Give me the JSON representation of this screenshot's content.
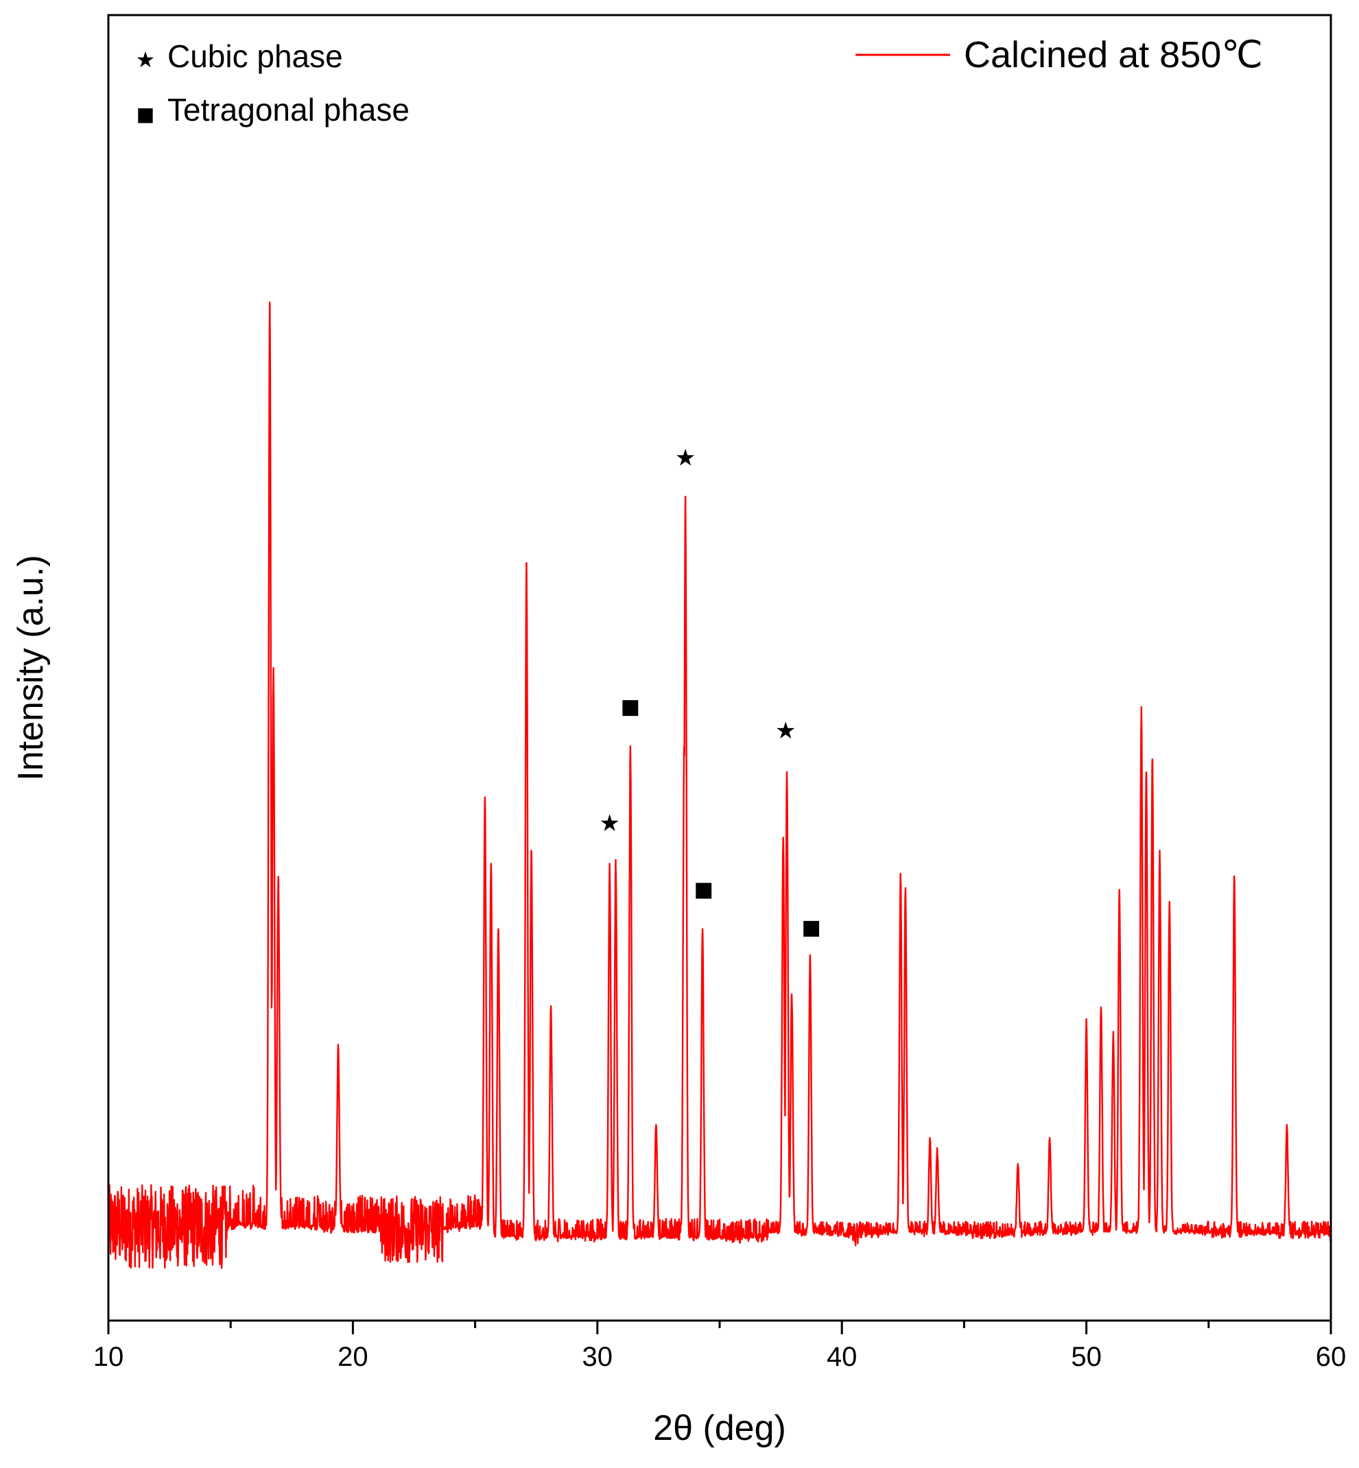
{
  "chart_data": {
    "type": "line",
    "xlabel": "2θ (deg)",
    "ylabel": "Intensity (a.u.)",
    "xlim": [
      10,
      60
    ],
    "ylim": [
      0,
      100
    ],
    "x_major_ticks": [
      10,
      20,
      30,
      40,
      50,
      60
    ],
    "x_tick_labels": [
      "10",
      "20",
      "30",
      "40",
      "50",
      "60"
    ],
    "x_minor_ticks": [
      15,
      25,
      35,
      45,
      55
    ],
    "y_tick_labels": "none",
    "grid": false,
    "legend": {
      "placement": "top-right"
    },
    "series": [
      {
        "name": "Calcined at 850℃",
        "color": "#ff0000",
        "baseline_segments": [
          {
            "x": [
              10,
              16
            ],
            "center": 7.2,
            "noise": 3.2
          },
          {
            "x": [
              16,
              25.5
            ],
            "center": 7.0,
            "noise": 2.6
          },
          {
            "x": [
              25.5,
              37
            ],
            "center": 6.2,
            "noise": 1.6
          },
          {
            "x": [
              37,
              60
            ],
            "center": 6.6,
            "noise": 1.0
          }
        ],
        "peaks": [
          {
            "x": 16.6,
            "y": 78
          },
          {
            "x": 16.75,
            "y": 50
          },
          {
            "x": 16.95,
            "y": 34
          },
          {
            "x": 19.4,
            "y": 21
          },
          {
            "x": 25.4,
            "y": 40
          },
          {
            "x": 25.65,
            "y": 35
          },
          {
            "x": 25.95,
            "y": 30
          },
          {
            "x": 27.1,
            "y": 58
          },
          {
            "x": 27.3,
            "y": 36
          },
          {
            "x": 28.1,
            "y": 24
          },
          {
            "x": 30.5,
            "y": 35
          },
          {
            "x": 30.75,
            "y": 35
          },
          {
            "x": 31.35,
            "y": 44
          },
          {
            "x": 32.4,
            "y": 15
          },
          {
            "x": 33.6,
            "y": 63
          },
          {
            "x": 33.55,
            "y": 44
          },
          {
            "x": 34.3,
            "y": 30
          },
          {
            "x": 37.6,
            "y": 37
          },
          {
            "x": 37.75,
            "y": 42
          },
          {
            "x": 37.95,
            "y": 25
          },
          {
            "x": 38.7,
            "y": 28
          },
          {
            "x": 42.4,
            "y": 34
          },
          {
            "x": 42.6,
            "y": 33
          },
          {
            "x": 43.6,
            "y": 14
          },
          {
            "x": 43.9,
            "y": 13
          },
          {
            "x": 47.2,
            "y": 12
          },
          {
            "x": 48.5,
            "y": 14
          },
          {
            "x": 50.0,
            "y": 23
          },
          {
            "x": 50.6,
            "y": 24
          },
          {
            "x": 51.1,
            "y": 22
          },
          {
            "x": 51.35,
            "y": 33
          },
          {
            "x": 52.25,
            "y": 47
          },
          {
            "x": 52.45,
            "y": 42
          },
          {
            "x": 52.7,
            "y": 43
          },
          {
            "x": 53.0,
            "y": 36
          },
          {
            "x": 53.4,
            "y": 32
          },
          {
            "x": 56.05,
            "y": 34
          },
          {
            "x": 58.2,
            "y": 15
          }
        ]
      }
    ],
    "phase_markers": [
      {
        "phase": "cubic",
        "symbol": "★",
        "x": 30.5,
        "y": 37.5
      },
      {
        "phase": "tetragonal",
        "symbol": "■",
        "x": 31.35,
        "y": 46.5
      },
      {
        "phase": "cubic",
        "symbol": "★",
        "x": 33.6,
        "y": 65.5
      },
      {
        "phase": "tetragonal",
        "symbol": "■",
        "x": 34.35,
        "y": 32.5
      },
      {
        "phase": "cubic",
        "symbol": "★",
        "x": 37.7,
        "y": 44.6
      },
      {
        "phase": "tetragonal",
        "symbol": "■",
        "x": 38.75,
        "y": 29.6
      }
    ],
    "phase_legend": [
      {
        "symbol": "★",
        "label": "Cubic phase"
      },
      {
        "symbol": "■",
        "label": "Tetragonal phase"
      }
    ]
  }
}
